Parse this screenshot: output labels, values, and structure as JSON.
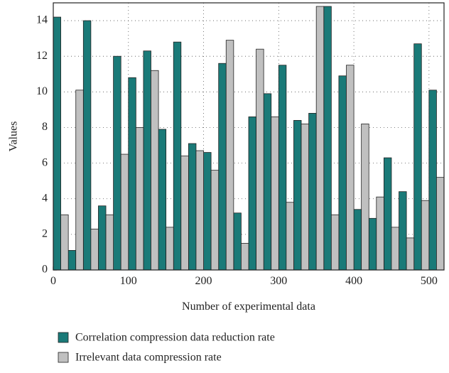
{
  "chart_data": {
    "type": "bar",
    "x_label": "Number of experimental data",
    "y_label": "Values",
    "x": [
      10,
      30,
      50,
      70,
      90,
      110,
      130,
      150,
      170,
      190,
      210,
      230,
      250,
      270,
      290,
      310,
      330,
      350,
      370,
      390,
      410,
      430,
      450,
      470,
      490,
      510
    ],
    "series": [
      {
        "name": "Correlation compression data reduction rate",
        "color": "#1a7a78",
        "values": [
          14.2,
          1.1,
          14.0,
          3.6,
          12.0,
          10.8,
          12.3,
          7.9,
          12.8,
          7.1,
          6.6,
          11.6,
          3.2,
          8.6,
          9.9,
          11.5,
          8.4,
          8.8,
          14.8,
          10.9,
          3.4,
          2.9,
          6.3,
          4.4,
          12.7,
          10.1
        ]
      },
      {
        "name": "Irrelevant data compression rate",
        "color": "#c0c0c0",
        "values": [
          3.1,
          10.1,
          2.3,
          3.1,
          6.5,
          8.0,
          11.2,
          2.4,
          6.4,
          6.7,
          5.6,
          12.9,
          1.5,
          12.4,
          8.6,
          3.8,
          8.2,
          14.8,
          3.1,
          11.5,
          8.2,
          4.1,
          2.4,
          1.8,
          3.9,
          5.2
        ]
      }
    ],
    "xlim": [
      0,
      520
    ],
    "xticks": [
      0,
      100,
      200,
      300,
      400,
      500
    ],
    "ylim": [
      0,
      15
    ],
    "yticks": [
      0,
      2,
      4,
      6,
      8,
      10,
      12,
      14
    ],
    "grid": true
  }
}
